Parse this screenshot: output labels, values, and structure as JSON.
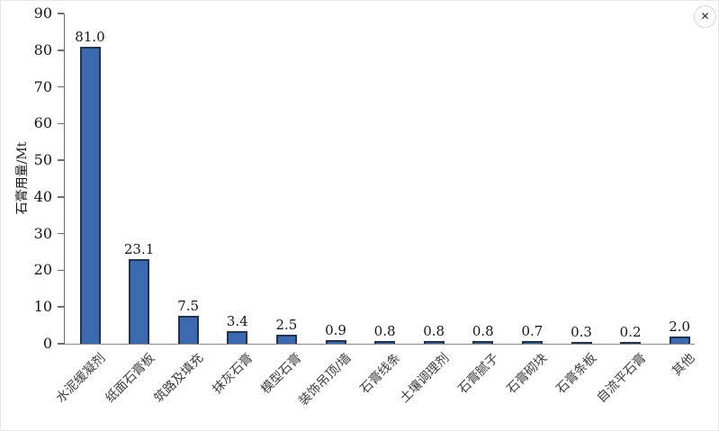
{
  "viewer": {
    "close_icon": "✕"
  },
  "chart_data": {
    "type": "bar",
    "title": "",
    "xlabel": "",
    "ylabel": "石膏用量/Mt",
    "ylim": [
      0,
      90
    ],
    "yticks": [
      0,
      10,
      20,
      30,
      40,
      50,
      60,
      70,
      80,
      90
    ],
    "grid": false,
    "legend_position": "none",
    "bar_fill_color": "#3c6ab1",
    "bar_border_color": "#1f3450",
    "categories": [
      "水泥缓凝剂",
      "纸面石膏板",
      "筑路及填充",
      "抹灰石膏",
      "模型石膏",
      "装饰吊顶/墙",
      "石膏线条",
      "土壤调理剂",
      "石膏腻子",
      "石膏砌块",
      "石膏条板",
      "自流平石膏",
      "其他"
    ],
    "values": [
      81.0,
      23.1,
      7.5,
      3.4,
      2.5,
      0.9,
      0.8,
      0.8,
      0.8,
      0.7,
      0.3,
      0.2,
      2.0
    ],
    "value_labels": [
      "81.0",
      "23.1",
      "7.5",
      "3.4",
      "2.5",
      "0.9",
      "0.8",
      "0.8",
      "0.8",
      "0.7",
      "0.3",
      "0.2",
      "2.0"
    ]
  }
}
